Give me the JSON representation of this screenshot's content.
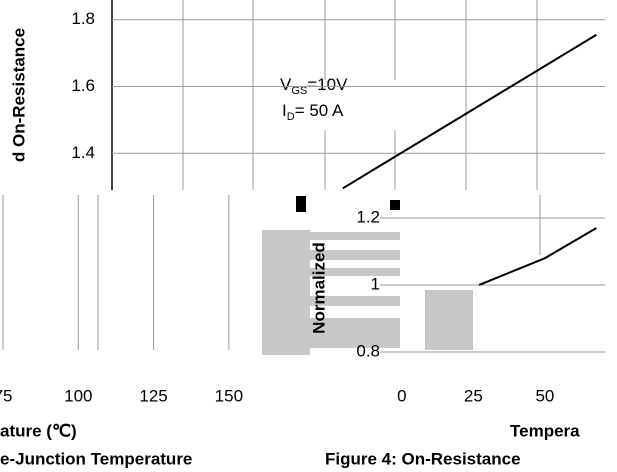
{
  "chart_data": [
    {
      "type": "line",
      "y_label": "d On-Resistance",
      "annotation_vgs": {
        "symbol": "V",
        "subscript": "GS",
        "text": "=10V"
      },
      "annotation_id": {
        "symbol": "I",
        "subscript": "D",
        "text": "= 50 A"
      },
      "xlim": [
        -50,
        123
      ],
      "ylim": [
        1.29,
        1.85
      ],
      "yticks": [
        1.4,
        1.6,
        1.8
      ],
      "series": [
        {
          "color": "#000000",
          "x": [
            31,
            120
          ],
          "values": [
            1.295,
            1.755
          ]
        }
      ]
    },
    {
      "type": "line",
      "x_label": "ature (℃)",
      "caption": "e-Junction Temperature",
      "xlim": [
        74,
        161
      ],
      "xticks": [
        75,
        100,
        125,
        150
      ],
      "series": []
    },
    {
      "type": "line",
      "y_label": "Normalized",
      "x_label": "Tempera",
      "caption": "Figure 4: On-Resistance",
      "xlim": [
        -1,
        71
      ],
      "ylim": [
        0.75,
        1.27
      ],
      "xticks": [
        0,
        25,
        50
      ],
      "yticks": [
        0.8,
        1,
        1.2
      ],
      "series": [
        {
          "color": "#000000",
          "x": [
            27,
            50,
            68
          ],
          "values": [
            1.0,
            1.08,
            1.17
          ]
        }
      ]
    }
  ]
}
